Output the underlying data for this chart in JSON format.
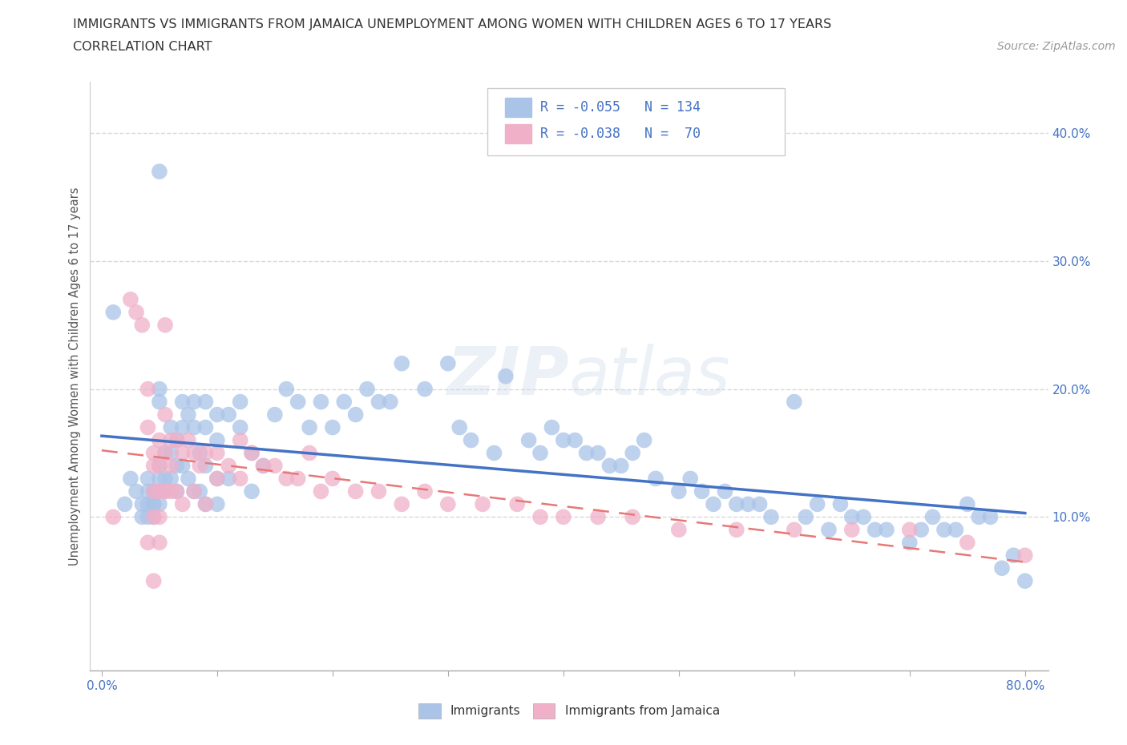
{
  "title_line1": "IMMIGRANTS VS IMMIGRANTS FROM JAMAICA UNEMPLOYMENT AMONG WOMEN WITH CHILDREN AGES 6 TO 17 YEARS",
  "title_line2": "CORRELATION CHART",
  "source_text": "Source: ZipAtlas.com",
  "ylabel": "Unemployment Among Women with Children Ages 6 to 17 years",
  "xlim": [
    -0.01,
    0.82
  ],
  "ylim": [
    -0.02,
    0.44
  ],
  "xticks": [
    0.0,
    0.1,
    0.2,
    0.3,
    0.4,
    0.5,
    0.6,
    0.7,
    0.8
  ],
  "xticklabels": [
    "0.0%",
    "",
    "",
    "",
    "",
    "",
    "",
    "",
    "80.0%"
  ],
  "ytick_vals": [
    0.1,
    0.2,
    0.3,
    0.4
  ],
  "ytick_labels": [
    "10.0%",
    "20.0%",
    "30.0%",
    "40.0%"
  ],
  "color_immigrants": "#aac4e8",
  "color_jamaica": "#f0b0c8",
  "line_color_immigrants": "#4472c4",
  "line_color_jamaica": "#e87878",
  "R_immigrants": -0.055,
  "N_immigrants": 134,
  "R_jamaica": -0.038,
  "N_jamaica": 70,
  "legend_label_immigrants": "Immigrants",
  "legend_label_jamaica": "Immigrants from Jamaica",
  "watermark": "ZIPatlas",
  "background_color": "#ffffff",
  "grid_color": "#d8d8d8",
  "scatter_immigrants_x": [
    0.01,
    0.02,
    0.025,
    0.03,
    0.035,
    0.035,
    0.04,
    0.04,
    0.04,
    0.04,
    0.045,
    0.045,
    0.045,
    0.045,
    0.045,
    0.05,
    0.05,
    0.05,
    0.05,
    0.05,
    0.05,
    0.05,
    0.055,
    0.055,
    0.055,
    0.06,
    0.06,
    0.06,
    0.065,
    0.065,
    0.065,
    0.07,
    0.07,
    0.07,
    0.075,
    0.075,
    0.08,
    0.08,
    0.08,
    0.085,
    0.085,
    0.09,
    0.09,
    0.09,
    0.09,
    0.1,
    0.1,
    0.1,
    0.1,
    0.11,
    0.11,
    0.12,
    0.12,
    0.13,
    0.13,
    0.14,
    0.15,
    0.16,
    0.17,
    0.18,
    0.19,
    0.2,
    0.21,
    0.22,
    0.23,
    0.24,
    0.25,
    0.26,
    0.28,
    0.3,
    0.31,
    0.32,
    0.34,
    0.35,
    0.37,
    0.38,
    0.39,
    0.4,
    0.41,
    0.42,
    0.43,
    0.44,
    0.45,
    0.46,
    0.47,
    0.48,
    0.5,
    0.51,
    0.52,
    0.53,
    0.54,
    0.55,
    0.56,
    0.57,
    0.58,
    0.6,
    0.61,
    0.62,
    0.63,
    0.64,
    0.65,
    0.66,
    0.67,
    0.68,
    0.7,
    0.71,
    0.72,
    0.73,
    0.74,
    0.75,
    0.76,
    0.77,
    0.78,
    0.79,
    0.8
  ],
  "scatter_immigrants_y": [
    0.26,
    0.11,
    0.13,
    0.12,
    0.11,
    0.1,
    0.13,
    0.12,
    0.11,
    0.1,
    0.12,
    0.12,
    0.11,
    0.11,
    0.1,
    0.37,
    0.2,
    0.19,
    0.14,
    0.13,
    0.12,
    0.11,
    0.15,
    0.13,
    0.12,
    0.17,
    0.15,
    0.13,
    0.16,
    0.14,
    0.12,
    0.19,
    0.17,
    0.14,
    0.18,
    0.13,
    0.19,
    0.17,
    0.12,
    0.15,
    0.12,
    0.19,
    0.17,
    0.14,
    0.11,
    0.18,
    0.16,
    0.13,
    0.11,
    0.18,
    0.13,
    0.19,
    0.17,
    0.15,
    0.12,
    0.14,
    0.18,
    0.2,
    0.19,
    0.17,
    0.19,
    0.17,
    0.19,
    0.18,
    0.2,
    0.19,
    0.19,
    0.22,
    0.2,
    0.22,
    0.17,
    0.16,
    0.15,
    0.21,
    0.16,
    0.15,
    0.17,
    0.16,
    0.16,
    0.15,
    0.15,
    0.14,
    0.14,
    0.15,
    0.16,
    0.13,
    0.12,
    0.13,
    0.12,
    0.11,
    0.12,
    0.11,
    0.11,
    0.11,
    0.1,
    0.19,
    0.1,
    0.11,
    0.09,
    0.11,
    0.1,
    0.1,
    0.09,
    0.09,
    0.08,
    0.09,
    0.1,
    0.09,
    0.09,
    0.11,
    0.1,
    0.1,
    0.06,
    0.07,
    0.05
  ],
  "scatter_jamaica_x": [
    0.01,
    0.025,
    0.03,
    0.035,
    0.04,
    0.04,
    0.04,
    0.045,
    0.045,
    0.045,
    0.045,
    0.045,
    0.05,
    0.05,
    0.05,
    0.05,
    0.05,
    0.055,
    0.055,
    0.055,
    0.055,
    0.06,
    0.06,
    0.06,
    0.065,
    0.065,
    0.07,
    0.07,
    0.075,
    0.08,
    0.08,
    0.085,
    0.09,
    0.09,
    0.1,
    0.1,
    0.11,
    0.12,
    0.12,
    0.13,
    0.14,
    0.15,
    0.16,
    0.17,
    0.18,
    0.19,
    0.2,
    0.22,
    0.24,
    0.26,
    0.28,
    0.3,
    0.33,
    0.36,
    0.38,
    0.4,
    0.43,
    0.46,
    0.5,
    0.55,
    0.6,
    0.65,
    0.7,
    0.75,
    0.8
  ],
  "scatter_jamaica_y": [
    0.1,
    0.27,
    0.26,
    0.25,
    0.2,
    0.17,
    0.08,
    0.15,
    0.14,
    0.12,
    0.1,
    0.05,
    0.16,
    0.14,
    0.12,
    0.1,
    0.08,
    0.25,
    0.18,
    0.15,
    0.12,
    0.16,
    0.14,
    0.12,
    0.16,
    0.12,
    0.15,
    0.11,
    0.16,
    0.15,
    0.12,
    0.14,
    0.15,
    0.11,
    0.15,
    0.13,
    0.14,
    0.16,
    0.13,
    0.15,
    0.14,
    0.14,
    0.13,
    0.13,
    0.15,
    0.12,
    0.13,
    0.12,
    0.12,
    0.11,
    0.12,
    0.11,
    0.11,
    0.11,
    0.1,
    0.1,
    0.1,
    0.1,
    0.09,
    0.09,
    0.09,
    0.09,
    0.09,
    0.08,
    0.07
  ]
}
